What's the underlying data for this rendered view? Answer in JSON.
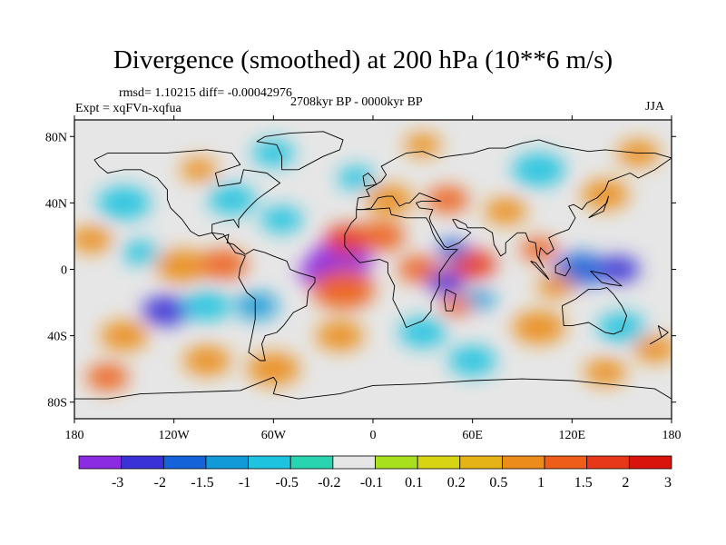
{
  "figure": {
    "title": "Divergence (smoothed) at 200 hPa (10**6 m/s)",
    "stats": "rmsd= 1.10215 diff= -0.00042976",
    "period": "2708kyr BP - 0000kyr BP",
    "experiment": "Expt = xqFVn-xqfua",
    "season": "JJA"
  },
  "map": {
    "projection": "cylindrical equidistant",
    "lon_range": [
      -180,
      180
    ],
    "lat_range": [
      -90,
      90
    ],
    "x_ticks": [
      {
        "value": -180,
        "label": "180"
      },
      {
        "value": -120,
        "label": "120W"
      },
      {
        "value": -60,
        "label": "60W"
      },
      {
        "value": 0,
        "label": "0"
      },
      {
        "value": 60,
        "label": "60E"
      },
      {
        "value": 120,
        "label": "120E"
      },
      {
        "value": 180,
        "label": "180"
      }
    ],
    "y_ticks": [
      {
        "value": 80,
        "label": "80N"
      },
      {
        "value": 40,
        "label": "40N"
      },
      {
        "value": 0,
        "label": "0"
      },
      {
        "value": -40,
        "label": "40S"
      },
      {
        "value": -80,
        "label": "80S"
      }
    ],
    "background_color": "#e6e6e6",
    "features": [
      {
        "lon": -20,
        "lat": 5,
        "category": 0,
        "spread": 12
      },
      {
        "lon": -32,
        "lat": -2,
        "category": 0,
        "spread": 8
      },
      {
        "lon": -15,
        "lat": 18,
        "category": 12,
        "spread": 9
      },
      {
        "lon": 5,
        "lat": 20,
        "category": 11,
        "spread": 9
      },
      {
        "lon": 28,
        "lat": 0,
        "category": 11,
        "spread": 8
      },
      {
        "lon": -18,
        "lat": -12,
        "category": 11,
        "spread": 12
      },
      {
        "lon": 60,
        "lat": 3,
        "category": 12,
        "spread": 9
      },
      {
        "lon": 48,
        "lat": 12,
        "category": 2,
        "spread": 6
      },
      {
        "lon": 44,
        "lat": -8,
        "category": 1,
        "spread": 7
      },
      {
        "lon": 64,
        "lat": -18,
        "category": 3,
        "spread": 6
      },
      {
        "lon": 50,
        "lat": -22,
        "category": 11,
        "spread": 6
      },
      {
        "lon": 125,
        "lat": 0,
        "category": 2,
        "spread": 10
      },
      {
        "lon": 148,
        "lat": 0,
        "category": 1,
        "spread": 8
      },
      {
        "lon": 100,
        "lat": 12,
        "category": 11,
        "spread": 7
      },
      {
        "lon": 110,
        "lat": -10,
        "category": 10,
        "spread": 7
      },
      {
        "lon": -170,
        "lat": 18,
        "category": 10,
        "spread": 8
      },
      {
        "lon": -115,
        "lat": 2,
        "category": 10,
        "spread": 10
      },
      {
        "lon": -90,
        "lat": 3,
        "category": 11,
        "spread": 9
      },
      {
        "lon": -140,
        "lat": 10,
        "category": 4,
        "spread": 7
      },
      {
        "lon": -125,
        "lat": -25,
        "category": 1,
        "spread": 9
      },
      {
        "lon": -70,
        "lat": -22,
        "category": 3,
        "spread": 8
      },
      {
        "lon": -100,
        "lat": -22,
        "category": 4,
        "spread": 9
      },
      {
        "lon": -85,
        "lat": 42,
        "category": 4,
        "spread": 9
      },
      {
        "lon": -55,
        "lat": 30,
        "category": 4,
        "spread": 8
      },
      {
        "lon": -150,
        "lat": 40,
        "category": 4,
        "spread": 10
      },
      {
        "lon": -105,
        "lat": 60,
        "category": 10,
        "spread": 7
      },
      {
        "lon": -60,
        "lat": 70,
        "category": 4,
        "spread": 8
      },
      {
        "lon": 10,
        "lat": 42,
        "category": 10,
        "spread": 9
      },
      {
        "lon": -10,
        "lat": 55,
        "category": 4,
        "spread": 7
      },
      {
        "lon": 45,
        "lat": 42,
        "category": 11,
        "spread": 8
      },
      {
        "lon": 80,
        "lat": 35,
        "category": 10,
        "spread": 8
      },
      {
        "lon": 140,
        "lat": 45,
        "category": 10,
        "spread": 9
      },
      {
        "lon": 100,
        "lat": 60,
        "category": 4,
        "spread": 10
      },
      {
        "lon": 160,
        "lat": 70,
        "category": 10,
        "spread": 8
      },
      {
        "lon": 30,
        "lat": 75,
        "category": 10,
        "spread": 7
      },
      {
        "lon": -150,
        "lat": -40,
        "category": 10,
        "spread": 9
      },
      {
        "lon": -20,
        "lat": -40,
        "category": 10,
        "spread": 9
      },
      {
        "lon": 30,
        "lat": -38,
        "category": 4,
        "spread": 9
      },
      {
        "lon": 100,
        "lat": -35,
        "category": 10,
        "spread": 10
      },
      {
        "lon": 150,
        "lat": -35,
        "category": 4,
        "spread": 9
      },
      {
        "lon": -100,
        "lat": -55,
        "category": 10,
        "spread": 9
      },
      {
        "lon": -60,
        "lat": -60,
        "category": 10,
        "spread": 10
      },
      {
        "lon": 60,
        "lat": -55,
        "category": 4,
        "spread": 9
      },
      {
        "lon": 140,
        "lat": -62,
        "category": 10,
        "spread": 8
      },
      {
        "lon": -160,
        "lat": -65,
        "category": 11,
        "spread": 8
      },
      {
        "lon": 170,
        "lat": -48,
        "category": 10,
        "spread": 8
      }
    ],
    "coastlines": [
      [
        [
          -168,
          66
        ],
        [
          -160,
          70
        ],
        [
          -140,
          70
        ],
        [
          -125,
          70
        ],
        [
          -100,
          72
        ],
        [
          -85,
          70
        ],
        [
          -80,
          63
        ],
        [
          -95,
          58
        ],
        [
          -93,
          50
        ],
        [
          -80,
          52
        ],
        [
          -78,
          60
        ],
        [
          -64,
          58
        ],
        [
          -56,
          52
        ],
        [
          -66,
          45
        ],
        [
          -70,
          42
        ],
        [
          -76,
          36
        ],
        [
          -81,
          30
        ],
        [
          -81,
          25
        ],
        [
          -84,
          30
        ],
        [
          -90,
          29
        ],
        [
          -97,
          27
        ],
        [
          -97,
          22
        ],
        [
          -90,
          21
        ],
        [
          -87,
          16
        ],
        [
          -83,
          10
        ],
        [
          -79,
          9
        ],
        [
          -77,
          8
        ],
        [
          -80,
          1
        ],
        [
          -81,
          -5
        ],
        [
          -76,
          -14
        ],
        [
          -71,
          -18
        ],
        [
          -71,
          -30
        ],
        [
          -73,
          -40
        ],
        [
          -75,
          -50
        ],
        [
          -68,
          -55
        ],
        [
          -65,
          -55
        ],
        [
          -67,
          -45
        ],
        [
          -65,
          -40
        ],
        [
          -58,
          -38
        ],
        [
          -54,
          -34
        ],
        [
          -48,
          -26
        ],
        [
          -40,
          -22
        ],
        [
          -39,
          -13
        ],
        [
          -35,
          -8
        ],
        [
          -35,
          -5
        ],
        [
          -45,
          -2
        ],
        [
          -50,
          0
        ],
        [
          -52,
          5
        ],
        [
          -60,
          8
        ],
        [
          -65,
          10
        ],
        [
          -72,
          12
        ],
        [
          -77,
          9
        ],
        [
          -84,
          15
        ],
        [
          -88,
          16
        ],
        [
          -87,
          21
        ],
        [
          -94,
          18
        ],
        [
          -97,
          22
        ],
        [
          -105,
          20
        ],
        [
          -110,
          23
        ],
        [
          -115,
          30
        ],
        [
          -118,
          33
        ],
        [
          -122,
          37
        ],
        [
          -124,
          42
        ],
        [
          -124,
          48
        ],
        [
          -130,
          55
        ],
        [
          -140,
          60
        ],
        [
          -150,
          60
        ],
        [
          -160,
          58
        ],
        [
          -165,
          62
        ],
        [
          -168,
          66
        ]
      ],
      [
        [
          -55,
          60
        ],
        [
          -45,
          60
        ],
        [
          -30,
          68
        ],
        [
          -20,
          72
        ],
        [
          -18,
          78
        ],
        [
          -30,
          83
        ],
        [
          -50,
          82
        ],
        [
          -65,
          80
        ],
        [
          -70,
          77
        ],
        [
          -58,
          75
        ],
        [
          -55,
          68
        ],
        [
          -55,
          60
        ]
      ],
      [
        [
          -10,
          36
        ],
        [
          -6,
          36
        ],
        [
          -2,
          36
        ],
        [
          10,
          37
        ],
        [
          11,
          33
        ],
        [
          20,
          31
        ],
        [
          32,
          31
        ],
        [
          34,
          28
        ],
        [
          36,
          22
        ],
        [
          38,
          18
        ],
        [
          43,
          12
        ],
        [
          51,
          12
        ],
        [
          47,
          8
        ],
        [
          40,
          -2
        ],
        [
          40,
          -10
        ],
        [
          35,
          -20
        ],
        [
          35,
          -25
        ],
        [
          30,
          -31
        ],
        [
          20,
          -35
        ],
        [
          18,
          -30
        ],
        [
          12,
          -18
        ],
        [
          13,
          -10
        ],
        [
          9,
          -2
        ],
        [
          9,
          4
        ],
        [
          4,
          6
        ],
        [
          -8,
          4
        ],
        [
          -12,
          8
        ],
        [
          -17,
          14
        ],
        [
          -17,
          21
        ],
        [
          -13,
          28
        ],
        [
          -10,
          31
        ],
        [
          -10,
          36
        ]
      ],
      [
        [
          -10,
          36
        ],
        [
          -9,
          43
        ],
        [
          -2,
          44
        ],
        [
          -4,
          48
        ],
        [
          0,
          50
        ],
        [
          5,
          53
        ],
        [
          8,
          57
        ],
        [
          5,
          62
        ],
        [
          14,
          67
        ],
        [
          20,
          70
        ],
        [
          30,
          71
        ],
        [
          40,
          67
        ],
        [
          45,
          68
        ],
        [
          60,
          70
        ],
        [
          70,
          73
        ],
        [
          80,
          73
        ],
        [
          90,
          76
        ],
        [
          100,
          78
        ],
        [
          113,
          74
        ],
        [
          130,
          71
        ],
        [
          140,
          72
        ],
        [
          160,
          70
        ],
        [
          170,
          70
        ],
        [
          180,
          67
        ],
        [
          170,
          60
        ],
        [
          160,
          55
        ],
        [
          155,
          58
        ],
        [
          142,
          53
        ],
        [
          140,
          48
        ],
        [
          135,
          43
        ],
        [
          129,
          40
        ],
        [
          126,
          36
        ],
        [
          121,
          39
        ],
        [
          118,
          38
        ],
        [
          122,
          31
        ],
        [
          118,
          24
        ],
        [
          110,
          21
        ],
        [
          106,
          19
        ],
        [
          109,
          12
        ],
        [
          105,
          9
        ],
        [
          101,
          13
        ],
        [
          100,
          7
        ],
        [
          103,
          1
        ],
        [
          99,
          8
        ],
        [
          98,
          16
        ],
        [
          94,
          17
        ],
        [
          92,
          22
        ],
        [
          87,
          22
        ],
        [
          80,
          16
        ],
        [
          80,
          10
        ],
        [
          77,
          8
        ],
        [
          73,
          15
        ],
        [
          72,
          22
        ],
        [
          67,
          25
        ],
        [
          57,
          25
        ],
        [
          56,
          27
        ],
        [
          50,
          30
        ],
        [
          48,
          30
        ],
        [
          51,
          25
        ],
        [
          56,
          24
        ],
        [
          59,
          22
        ],
        [
          52,
          16
        ],
        [
          45,
          13
        ],
        [
          43,
          14
        ],
        [
          35,
          28
        ],
        [
          34,
          31
        ],
        [
          36,
          36
        ],
        [
          28,
          37
        ],
        [
          26,
          40
        ],
        [
          29,
          41
        ],
        [
          41,
          41
        ],
        [
          28,
          46
        ],
        [
          22,
          40
        ],
        [
          20,
          40
        ],
        [
          16,
          38
        ],
        [
          12,
          44
        ],
        [
          8,
          44
        ],
        [
          3,
          43
        ],
        [
          -1,
          37
        ],
        [
          -6,
          36
        ],
        [
          -10,
          36
        ]
      ],
      [
        [
          114,
          -22
        ],
        [
          122,
          -18
        ],
        [
          130,
          -12
        ],
        [
          137,
          -12
        ],
        [
          141,
          -11
        ],
        [
          145,
          -15
        ],
        [
          150,
          -22
        ],
        [
          153,
          -28
        ],
        [
          150,
          -37
        ],
        [
          145,
          -39
        ],
        [
          140,
          -38
        ],
        [
          135,
          -35
        ],
        [
          130,
          -32
        ],
        [
          120,
          -34
        ],
        [
          115,
          -34
        ],
        [
          114,
          -22
        ]
      ],
      [
        [
          95,
          5
        ],
        [
          106,
          -6
        ],
        [
          104,
          -3
        ],
        [
          98,
          4
        ],
        [
          95,
          5
        ]
      ],
      [
        [
          110,
          2
        ],
        [
          117,
          7
        ],
        [
          119,
          1
        ],
        [
          116,
          -4
        ],
        [
          110,
          -2
        ],
        [
          110,
          2
        ]
      ],
      [
        [
          131,
          -1
        ],
        [
          141,
          -3
        ],
        [
          150,
          -10
        ],
        [
          143,
          -9
        ],
        [
          138,
          -8
        ],
        [
          131,
          -1
        ]
      ],
      [
        [
          44,
          -12
        ],
        [
          50,
          -15
        ],
        [
          48,
          -25
        ],
        [
          44,
          -25
        ],
        [
          43,
          -18
        ],
        [
          44,
          -12
        ]
      ],
      [
        [
          130,
          31
        ],
        [
          134,
          34
        ],
        [
          141,
          40
        ],
        [
          142,
          44
        ],
        [
          139,
          35
        ],
        [
          130,
          31
        ]
      ],
      [
        [
          -5,
          50
        ],
        [
          2,
          51
        ],
        [
          0,
          55
        ],
        [
          -3,
          58
        ],
        [
          -6,
          56
        ],
        [
          -5,
          50
        ]
      ],
      [
        [
          167,
          -45
        ],
        [
          174,
          -41
        ],
        [
          178,
          -38
        ],
        [
          172,
          -34
        ],
        [
          174,
          -41
        ],
        [
          167,
          -45
        ]
      ],
      [
        [
          -180,
          -78
        ],
        [
          -160,
          -78
        ],
        [
          -140,
          -75
        ],
        [
          -110,
          -74
        ],
        [
          -80,
          -73
        ],
        [
          -60,
          -65
        ],
        [
          -58,
          -68
        ],
        [
          -60,
          -75
        ],
        [
          -45,
          -78
        ],
        [
          -20,
          -75
        ],
        [
          0,
          -70
        ],
        [
          30,
          -69
        ],
        [
          60,
          -67
        ],
        [
          90,
          -66
        ],
        [
          120,
          -67
        ],
        [
          150,
          -70
        ],
        [
          170,
          -72
        ],
        [
          180,
          -78
        ]
      ]
    ]
  },
  "colorbar": {
    "colors": [
      "#8b2be2",
      "#3a32d6",
      "#1463d8",
      "#129ad8",
      "#1ec3e0",
      "#29d4b0",
      "#e6e6e6",
      "#a8e01e",
      "#d8d412",
      "#e6b316",
      "#ec8c1a",
      "#ee5e1a",
      "#e8381a",
      "#d8140c"
    ],
    "labels": [
      "-3",
      "-2",
      "-1.5",
      "-1",
      "-0.5",
      "-0.2",
      "-0.1",
      "0.1",
      "0.2",
      "0.5",
      "1",
      "1.5",
      "2",
      "3"
    ]
  }
}
